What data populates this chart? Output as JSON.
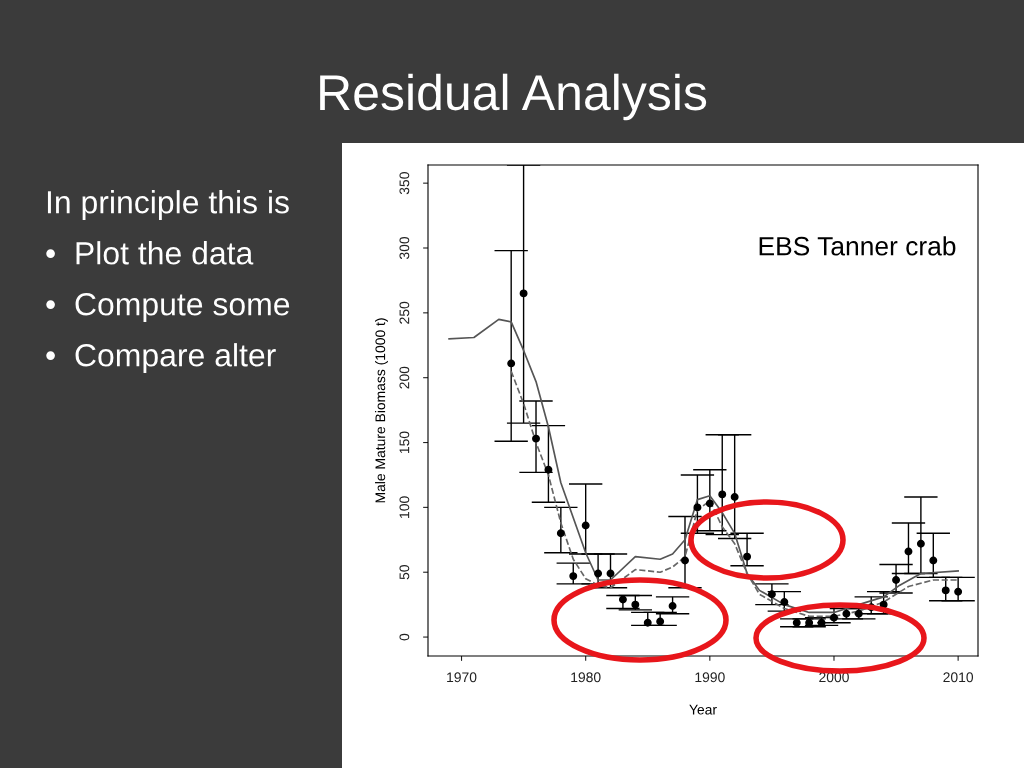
{
  "chart_data": {
    "type": "scatter",
    "title": "Residual Analysis",
    "xlabel": "Year",
    "ylabel": "Male Mature Biomass (1000 t)",
    "annotations": [
      "In principle this is",
      "•  Plot the data",
      "•  Compute some",
      "•  Compare alter",
      "EBS Tanner crab"
    ],
    "xlim": [
      1967.3,
      2011.6
    ],
    "ylim": [
      -14.6,
      364
    ],
    "xticks": [
      1970,
      1980,
      1990,
      2000,
      2010
    ],
    "yticks": [
      0,
      50,
      100,
      150,
      200,
      250,
      300,
      350
    ],
    "grid": false,
    "legend": false,
    "series": [
      {
        "type": "scatter",
        "color": "#000000",
        "marker": "circle",
        "x": [
          1974,
          1975,
          1976,
          1977,
          1978,
          1979,
          1980,
          1981,
          1982,
          1983,
          1984,
          1985,
          1986,
          1987,
          1988,
          1989,
          1990,
          1991,
          1992,
          1993,
          1995,
          1996,
          1997,
          1998,
          1999,
          2000,
          2001,
          2002,
          2003,
          2004,
          2005,
          2006,
          2007,
          2008,
          2009,
          2010
        ],
        "values": [
          211,
          265,
          153,
          129,
          80,
          47,
          86,
          49,
          49,
          29,
          25,
          11,
          12,
          24,
          59,
          100,
          103,
          110,
          108,
          62,
          33,
          27,
          11,
          11,
          11,
          15,
          18,
          18,
          23,
          25,
          44,
          66,
          72,
          59,
          36,
          35
        ],
        "errors": [
          [
            151,
            298
          ],
          [
            165,
            364
          ],
          [
            127,
            182
          ],
          [
            104,
            163
          ],
          [
            65,
            100
          ],
          [
            41,
            57
          ],
          [
            64,
            118
          ],
          [
            41,
            64
          ],
          [
            38,
            64
          ],
          [
            22,
            32
          ],
          [
            21,
            32
          ],
          [
            9,
            19
          ],
          [
            9,
            19
          ],
          [
            18,
            31
          ],
          [
            38,
            93
          ],
          [
            80,
            125
          ],
          [
            82,
            129
          ],
          [
            79,
            156
          ],
          [
            76,
            156
          ],
          [
            55,
            80
          ],
          [
            25,
            41
          ],
          [
            20,
            35
          ],
          [
            8,
            14
          ],
          [
            8,
            14
          ],
          [
            9,
            15
          ],
          [
            11,
            24
          ],
          [
            14,
            22
          ],
          [
            14,
            22
          ],
          [
            18,
            31
          ],
          [
            18,
            35
          ],
          [
            34,
            56
          ],
          [
            49,
            88
          ],
          [
            49,
            108
          ],
          [
            46,
            80
          ],
          [
            28,
            46
          ],
          [
            28,
            46
          ]
        ]
      },
      {
        "type": "line",
        "color": "#555555",
        "line_style": "solid",
        "x": [
          1969,
          1971,
          1973,
          1974,
          1975,
          1976,
          1977,
          1978,
          1980,
          1981,
          1982,
          1984,
          1986,
          1987,
          1988,
          1989,
          1990,
          1991,
          1992,
          1993,
          1994,
          1996,
          1998,
          2000,
          2002,
          2004,
          2005.3,
          2007,
          2010
        ],
        "values": [
          230,
          231,
          245,
          243,
          221,
          197,
          162,
          119,
          65,
          44,
          44,
          62,
          60,
          64,
          75,
          106,
          109,
          96,
          80,
          49,
          36,
          25,
          19,
          19,
          25,
          31,
          40,
          49,
          51
        ]
      },
      {
        "type": "line",
        "color": "#666666",
        "line_style": "dashed",
        "x": [
          1974,
          1975,
          1976,
          1977,
          1978,
          1979,
          1980,
          1981,
          1982,
          1984,
          1986,
          1987,
          1988,
          1989,
          1990,
          1991,
          1992,
          1993,
          1994,
          1996,
          1998,
          2000,
          2002,
          2004,
          2006,
          2008,
          2010
        ],
        "values": [
          205,
          180,
          150,
          125,
          88,
          60,
          45,
          40,
          38,
          52,
          50,
          54,
          62,
          98,
          105,
          85,
          72,
          49,
          33,
          22,
          16,
          16,
          20,
          27,
          39,
          44,
          44
        ]
      }
    ]
  }
}
